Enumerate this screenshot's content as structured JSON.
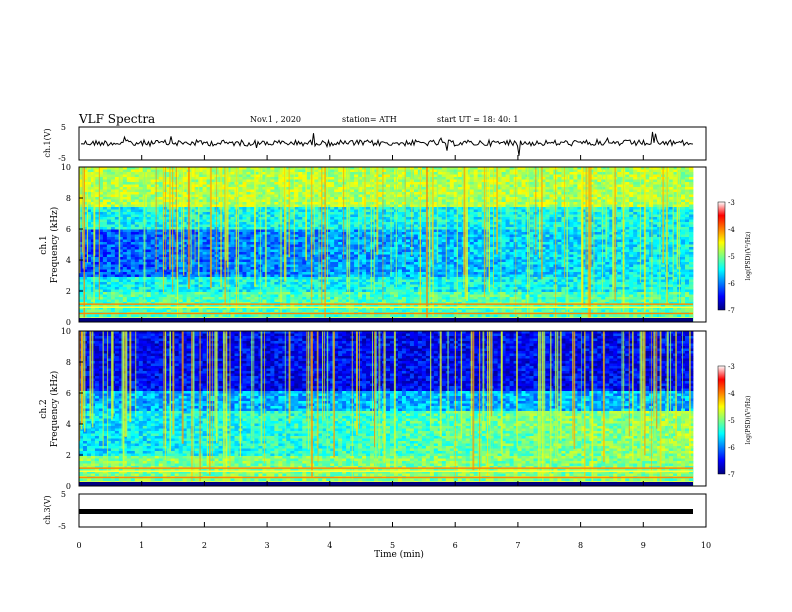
{
  "header": {
    "title": "VLF Spectra",
    "date": "Nov.1  , 2020",
    "station": "station= ATH",
    "start_ut": "start  UT  =   18: 40: 1"
  },
  "chart_data": [
    {
      "type": "line",
      "panel": "ch1-waveform",
      "ylabel": "ch.1(V)",
      "ylim": [
        -5,
        5
      ],
      "yticks": [
        "5",
        "-5"
      ],
      "xlim": [
        0,
        10
      ],
      "series": [
        {
          "values_description_free": true,
          "baseline": 0,
          "noise_amplitude_approx": 1.2
        }
      ]
    },
    {
      "type": "heatmap",
      "panel": "ch1-spectrogram",
      "ylabel": "ch.1\nFrequency  (kHz)",
      "ylabel_line1": "ch.1",
      "ylabel_line2": "Frequency  (kHz)",
      "ylim": [
        0,
        10
      ],
      "yticks": [
        "0",
        "2",
        "4",
        "6",
        "8",
        "10"
      ],
      "xlim": [
        0,
        9.85
      ],
      "colorbar": {
        "label": "log(PSD) (V²/Hz)",
        "ticks": [
          "-3",
          "-4",
          "-5",
          "-6",
          "-7"
        ],
        "range": [
          -7,
          -3
        ]
      },
      "colors": {
        "low": "#00007f",
        "mid": "#00ffff",
        "high": "#ff0000"
      }
    },
    {
      "type": "heatmap",
      "panel": "ch2-spectrogram",
      "ylabel_line1": "ch.2",
      "ylabel_line2": "Frequency  (kHz)",
      "ylim": [
        0,
        10
      ],
      "yticks": [
        "0",
        "2",
        "4",
        "6",
        "8",
        "10"
      ],
      "xlim": [
        0,
        9.85
      ],
      "colorbar": {
        "label": "log(PSD) (V²/Hz)",
        "ticks": [
          "-3",
          "-4",
          "-5",
          "-6",
          "-7"
        ],
        "range": [
          -7,
          -3
        ]
      }
    },
    {
      "type": "line",
      "panel": "ch3-waveform",
      "ylabel": "ch.3(V)",
      "ylim": [
        -5,
        5
      ],
      "yticks": [
        "5",
        "-5"
      ],
      "series": [
        {
          "constant_value": 0
        }
      ]
    }
  ],
  "xaxis": {
    "label": "Time  (min)",
    "ticks": [
      "0",
      "1",
      "2",
      "3",
      "4",
      "5",
      "6",
      "7",
      "8",
      "9",
      "10"
    ],
    "range": [
      0,
      10
    ]
  },
  "colorbar_label": "log(PSD)(V²/Hz)"
}
